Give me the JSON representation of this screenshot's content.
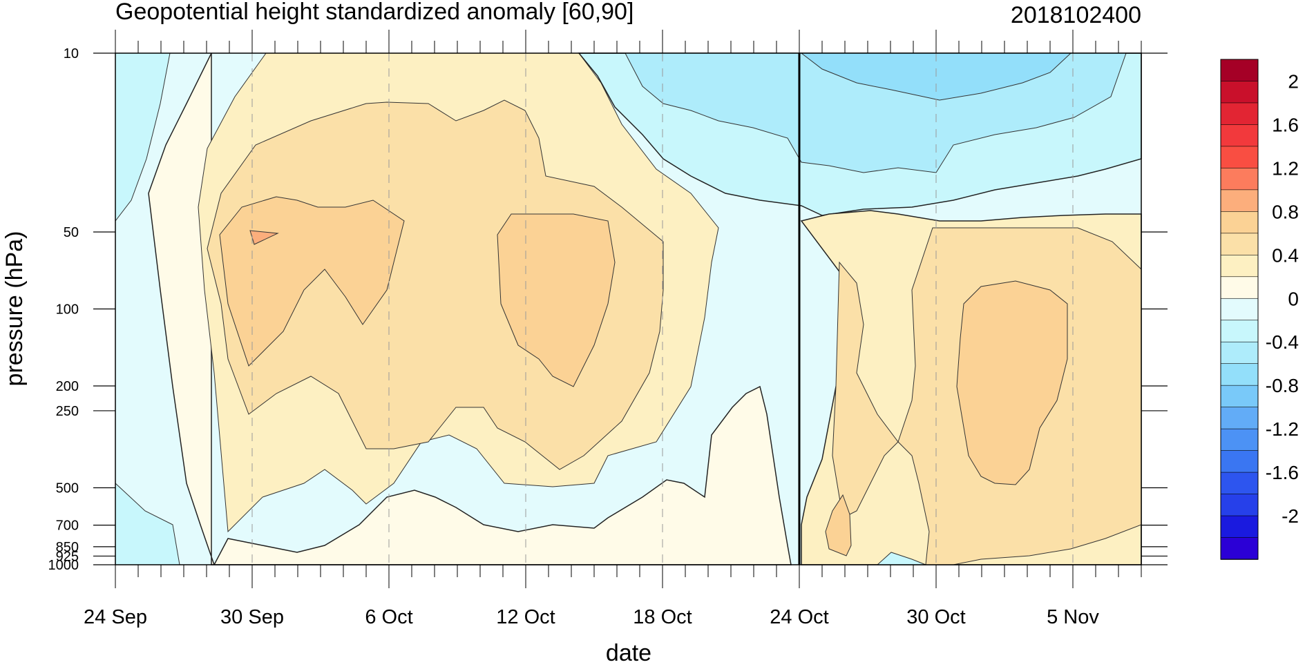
{
  "chart_data": {
    "type": "heatmap",
    "subtype": "filled-contour",
    "title": "Geopotential height standardized anomaly [60,90]",
    "title_right": "2018102400",
    "xlabel": "date",
    "ylabel": "pressure (hPa)",
    "y_scale": "log",
    "y_inverted": true,
    "ylim": [
      1000,
      10
    ],
    "xlim": [
      "2018-09-24",
      "2018-11-08"
    ],
    "x_ticks": [
      {
        "date": "2018-09-24",
        "label": "24 Sep"
      },
      {
        "date": "2018-09-30",
        "label": "30 Sep"
      },
      {
        "date": "2018-10-06",
        "label": "6 Oct"
      },
      {
        "date": "2018-10-12",
        "label": "12 Oct"
      },
      {
        "date": "2018-10-18",
        "label": "18 Oct"
      },
      {
        "date": "2018-10-24",
        "label": "24 Oct"
      },
      {
        "date": "2018-10-30",
        "label": "30 Oct"
      },
      {
        "date": "2018-11-05",
        "label": "5 Nov"
      }
    ],
    "y_ticks": [
      {
        "p": 10,
        "label": "10"
      },
      {
        "p": 50,
        "label": "50"
      },
      {
        "p": 100,
        "label": "100"
      },
      {
        "p": 200,
        "label": "200"
      },
      {
        "p": 250,
        "label": "250"
      },
      {
        "p": 500,
        "label": "500"
      },
      {
        "p": 700,
        "label": "700"
      },
      {
        "p": 850,
        "label": "850"
      },
      {
        "p": 925,
        "label": "925"
      },
      {
        "p": 1000,
        "label": "1000"
      }
    ],
    "vertical_marker": {
      "date": "2018-10-24"
    },
    "grid": "dashed vertical lines at labeled dates",
    "colorbar": {
      "levels": [
        -2.2,
        -2,
        -1.8,
        -1.6,
        -1.4,
        -1.2,
        -1,
        -0.8,
        -0.6,
        -0.4,
        -0.2,
        0,
        0.2,
        0.4,
        0.6,
        0.8,
        1,
        1.2,
        1.4,
        1.6,
        1.8,
        2,
        2.2
      ],
      "colors": [
        "#2b00d6",
        "#1a1adf",
        "#2640ea",
        "#2d55ef",
        "#3a76f2",
        "#4c92f5",
        "#62acf7",
        "#79c9f9",
        "#93dffa",
        "#aeecfb",
        "#c8f7fc",
        "#e3fbfd",
        "#fffbe8",
        "#fdf0c2",
        "#fbe0a8",
        "#fbd295",
        "#fcae7c",
        "#fc7c5d",
        "#f94e42",
        "#f2393c",
        "#e22533",
        "#c9102b",
        "#a50026"
      ],
      "labels": [
        "2",
        "1.6",
        "1.2",
        "0.8",
        "0.4",
        "0",
        "-0.4",
        "-0.8",
        "-1.2",
        "-1.6",
        "-2"
      ]
    },
    "regions": [
      {
        "value": -0.6,
        "description": "negative near top-left 10-50 hPa, Sep 24-25"
      },
      {
        "value": -0.6,
        "description": "negative upper layer, Oct 17 - Nov 8, 10-40 hPa"
      },
      {
        "value": -0.9,
        "description": "negative core around 10-25 hPa, Oct 26 - Nov 3"
      },
      {
        "value": 0.5,
        "description": "positive layer 10-700 hPa, Sep 27 - Oct 21"
      },
      {
        "value": 0.7,
        "description": "positive core 40-300 hPa, Sep 29 - Oct 5"
      },
      {
        "value": 0.8,
        "description": "positive core 60-250 hPa, Oct 10 - Oct 18"
      },
      {
        "value": 0.7,
        "description": "positive region 50-1000 hPa, Oct 25 - Nov 8"
      },
      {
        "value": -0.3,
        "description": "negative near surface 600-1000 hPa"
      }
    ]
  }
}
